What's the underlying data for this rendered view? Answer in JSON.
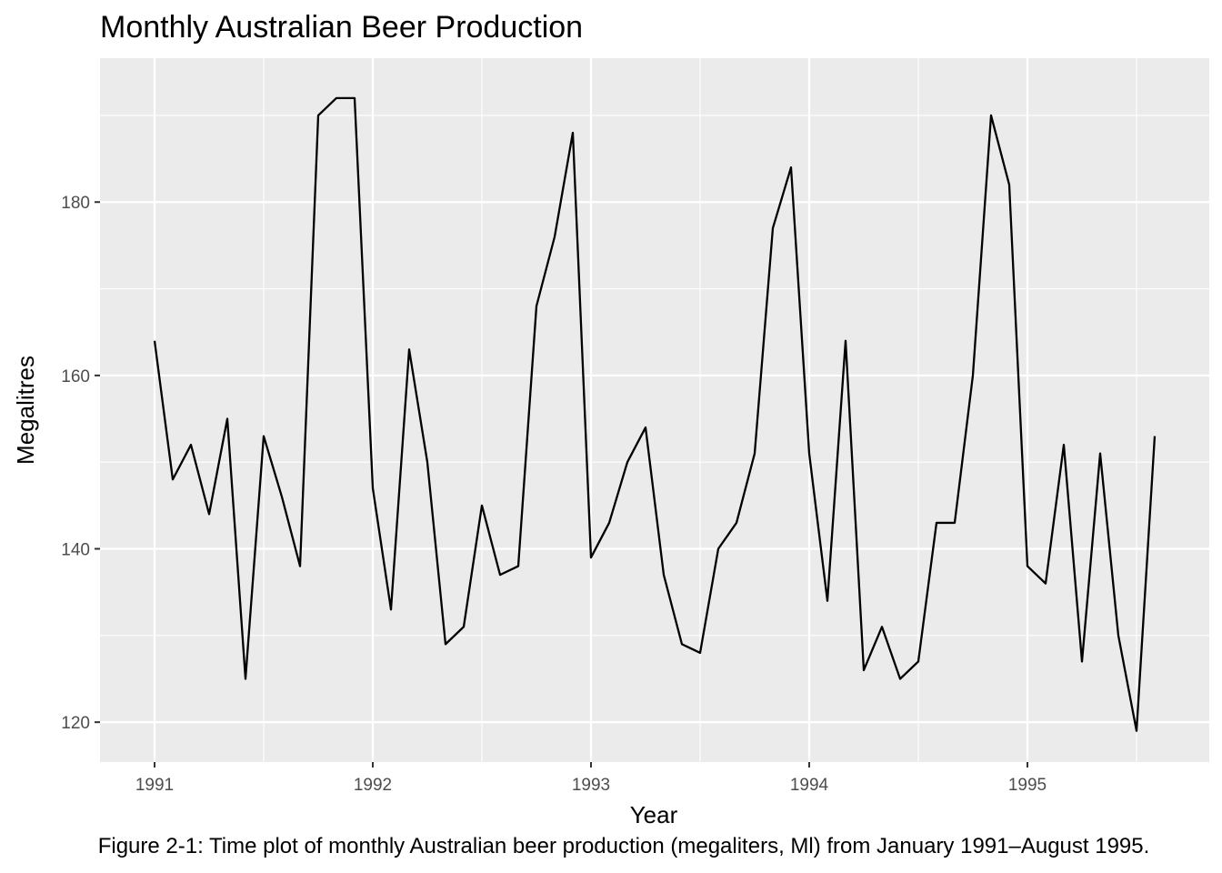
{
  "chart_data": {
    "type": "line",
    "title": "Monthly Australian Beer Production",
    "xlabel": "Year",
    "ylabel": "Megalitres",
    "caption": "Figure 2-1: Time plot of monthly Australian beer production (megaliters, Ml) from January 1991–August 1995.",
    "x_ticks": [
      "1991",
      "1992",
      "1993",
      "1994",
      "1995"
    ],
    "y_ticks": [
      "120",
      "140",
      "160",
      "180"
    ],
    "xlim": [
      "1990-10",
      "1995-11"
    ],
    "ylim": [
      115.4,
      196.6
    ],
    "grid": true,
    "legend": "none",
    "colors": {
      "panel": "#ebebeb",
      "grid": "#ffffff",
      "line": "#000000",
      "tick_text": "#4d4d4d"
    },
    "series": [
      {
        "x": [
          "1991-01",
          "1991-02",
          "1991-03",
          "1991-04",
          "1991-05",
          "1991-06",
          "1991-07",
          "1991-08",
          "1991-09",
          "1991-10",
          "1991-11",
          "1991-12",
          "1992-01",
          "1992-02",
          "1992-03",
          "1992-04",
          "1992-05",
          "1992-06",
          "1992-07",
          "1992-08",
          "1992-09",
          "1992-10",
          "1992-11",
          "1992-12",
          "1993-01",
          "1993-02",
          "1993-03",
          "1993-04",
          "1993-05",
          "1993-06",
          "1993-07",
          "1993-08",
          "1993-09",
          "1993-10",
          "1993-11",
          "1993-12",
          "1994-01",
          "1994-02",
          "1994-03",
          "1994-04",
          "1994-05",
          "1994-06",
          "1994-07",
          "1994-08",
          "1994-09",
          "1994-10",
          "1994-11",
          "1994-12",
          "1995-01",
          "1995-02",
          "1995-03",
          "1995-04",
          "1995-05",
          "1995-06",
          "1995-07",
          "1995-08"
        ],
        "values": [
          164,
          148,
          152,
          144,
          155,
          125,
          153,
          146,
          138,
          190,
          192,
          192,
          147,
          133,
          163,
          150,
          129,
          131,
          145,
          137,
          138,
          168,
          176,
          188,
          139,
          143,
          150,
          154,
          137,
          129,
          128,
          140,
          143,
          151,
          177,
          184,
          151,
          134,
          164,
          126,
          131,
          125,
          127,
          143,
          143,
          160,
          190,
          182,
          138,
          136,
          152,
          127,
          151,
          130,
          119,
          153
        ]
      }
    ]
  }
}
